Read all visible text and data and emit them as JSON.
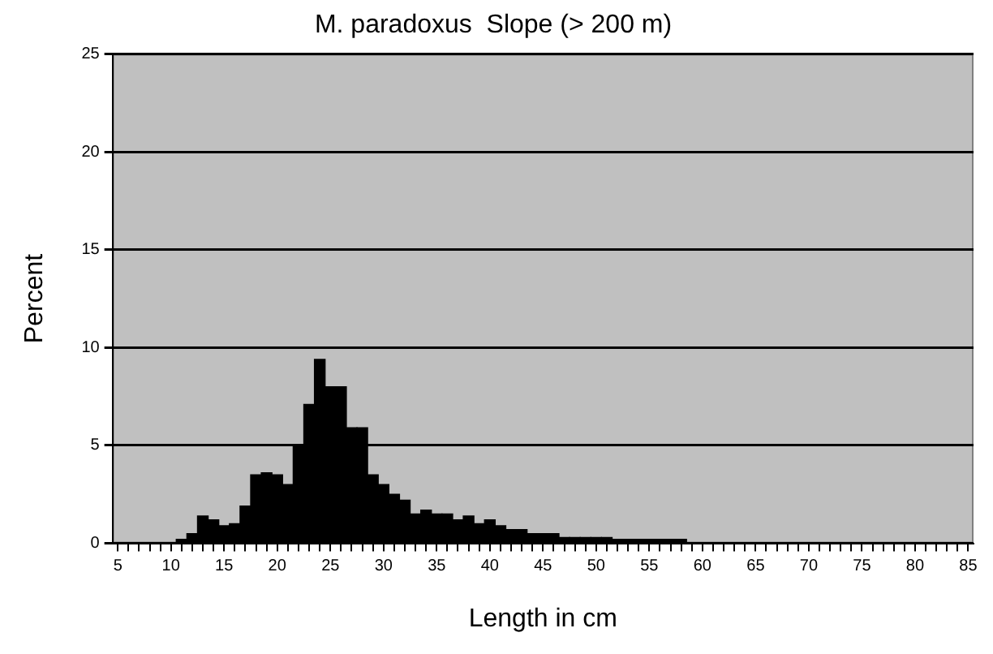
{
  "chart_data": {
    "type": "bar",
    "title": "M. paradoxus  Slope (> 200 m)",
    "xlabel": "Length in cm",
    "ylabel": "Percent",
    "categories": [
      "5",
      null,
      null,
      null,
      null,
      "10",
      null,
      null,
      null,
      null,
      "15",
      null,
      null,
      null,
      null,
      "20",
      null,
      null,
      null,
      null,
      "25",
      null,
      null,
      null,
      null,
      "30",
      null,
      null,
      null,
      null,
      "35",
      null,
      null,
      null,
      null,
      "40",
      null,
      null,
      null,
      null,
      "45",
      null,
      null,
      null,
      null,
      "50",
      null,
      null,
      null,
      null,
      "55",
      null,
      null,
      null,
      null,
      "60",
      null,
      null,
      null,
      null,
      "65",
      null,
      null,
      null,
      null,
      "70",
      null,
      null,
      null,
      null,
      "75",
      null,
      null,
      null,
      null,
      "80",
      null,
      null,
      null,
      null,
      "85"
    ],
    "values": [
      0,
      0,
      0,
      0,
      0,
      0,
      0.2,
      0.5,
      1.4,
      1.2,
      0.9,
      1.0,
      1.9,
      3.5,
      3.6,
      3.5,
      3.0,
      5.0,
      7.1,
      9.4,
      8.0,
      8.0,
      5.9,
      5.9,
      3.5,
      3.0,
      2.5,
      2.2,
      1.5,
      1.7,
      1.5,
      1.5,
      1.2,
      1.4,
      1.0,
      1.2,
      0.9,
      0.7,
      0.7,
      0.5,
      0.5,
      0.5,
      0.3,
      0.3,
      0.3,
      0.3,
      0.3,
      0.2,
      0.2,
      0.2,
      0.2,
      0.2,
      0.2,
      0.2,
      0,
      0,
      0,
      0,
      0,
      0,
      0,
      0,
      0,
      0,
      0,
      0,
      0,
      0,
      0,
      0,
      0,
      0,
      0,
      0,
      0,
      0,
      0,
      0,
      0,
      0,
      0
    ],
    "color": "#000000",
    "ylim": [
      0,
      25
    ],
    "yticks": [
      0,
      5,
      10,
      15,
      20,
      25
    ],
    "grid": "y",
    "legend": false
  }
}
